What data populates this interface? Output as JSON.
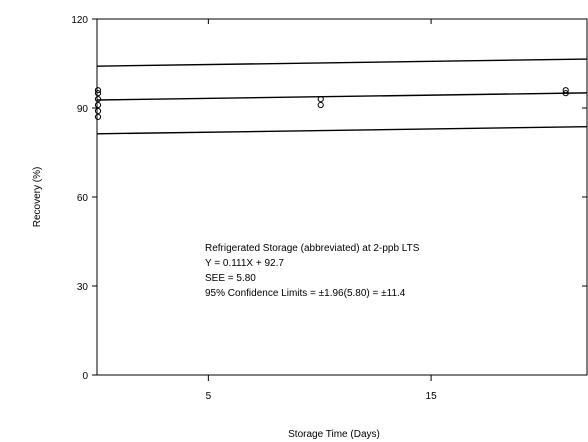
{
  "chart_data": {
    "type": "scatter",
    "title": "",
    "xlabel": "Storage Time (Days)",
    "ylabel": "Recovery (%)",
    "xlim": [
      0,
      22
    ],
    "ylim": [
      0,
      120
    ],
    "x_ticks": [
      5,
      15
    ],
    "y_ticks": [
      0,
      30,
      60,
      90,
      120
    ],
    "grid": false,
    "series": [
      {
        "points": [
          {
            "x": 0,
            "y": 87
          },
          {
            "x": 0,
            "y": 89
          },
          {
            "x": 0,
            "y": 91
          },
          {
            "x": 0,
            "y": 93
          },
          {
            "x": 0,
            "y": 95
          },
          {
            "x": 0,
            "y": 96
          },
          {
            "x": 10,
            "y": 91
          },
          {
            "x": 10,
            "y": 93
          },
          {
            "x": 21,
            "y": 95
          },
          {
            "x": 21,
            "y": 96
          }
        ]
      }
    ],
    "lines": [
      {
        "x": [
          0,
          22
        ],
        "y": [
          92.7,
          95.1
        ]
      },
      {
        "x": [
          0,
          22
        ],
        "y": [
          104.1,
          106.5
        ]
      },
      {
        "x": [
          0,
          22
        ],
        "y": [
          81.3,
          83.7
        ]
      }
    ],
    "annotations": [
      "Refrigerated Storage (abbreviated) at 2-ppb LTS",
      "Y = 0.111X + 92.7",
      "SEE = 5.80",
      "95% Confidence Limits = ±1.96(5.80) = ±11.4"
    ]
  }
}
